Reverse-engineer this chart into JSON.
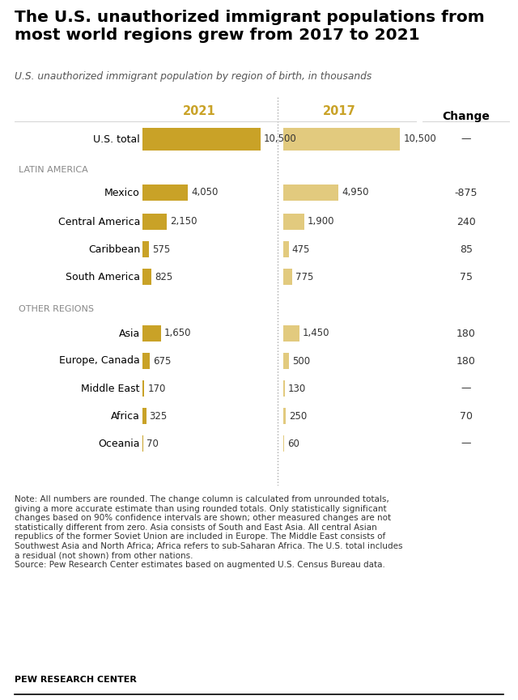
{
  "title_line1": "The U.S. unauthorized immigrant populations from",
  "title_line2": "most world regions grew from 2017 to 2021",
  "subtitle": "U.S. unauthorized immigrant population by region of birth, in thousands",
  "col_2021_label": "2021",
  "col_2017_label": "2017",
  "col_change_label": "Change",
  "categories": [
    "U.S. total",
    "Mexico",
    "Central America",
    "Caribbean",
    "South America",
    "Asia",
    "Europe, Canada",
    "Middle East",
    "Africa",
    "Oceania"
  ],
  "values_2021": [
    10500,
    4050,
    2150,
    575,
    825,
    1650,
    675,
    170,
    325,
    70
  ],
  "values_2017": [
    10500,
    4950,
    1900,
    475,
    775,
    1450,
    500,
    130,
    250,
    60
  ],
  "changes": [
    "—",
    "-875",
    "240",
    "85",
    "75",
    "180",
    "180",
    "—",
    "70",
    "—"
  ],
  "color_2021": "#C9A227",
  "color_2017": "#E2CA7E",
  "color_section": "#888888",
  "color_change_bg": "#EEE9DC",
  "color_title": "#000000",
  "color_label_gold": "#C9A227",
  "max_bar_value": 11500,
  "note_text": "Note: All numbers are rounded. The change column is calculated from unrounded totals,\ngiving a more accurate estimate than using rounded totals. Only statistically significant\nchanges based on 90% confidence intervals are shown; other measured changes are not\nstatistically different from zero. Asia consists of South and East Asia. All central Asian\nrepublics of the former Soviet Union are included in Europe. The Middle East consists of\nSouthwest Asia and North Africa; Africa refers to sub-Saharan Africa. The U.S. total includes\na residual (not shown) from other nations.\nSource: Pew Research Center estimates based on augmented U.S. Census Bureau data.",
  "footer": "PEW RESEARCH CENTER"
}
